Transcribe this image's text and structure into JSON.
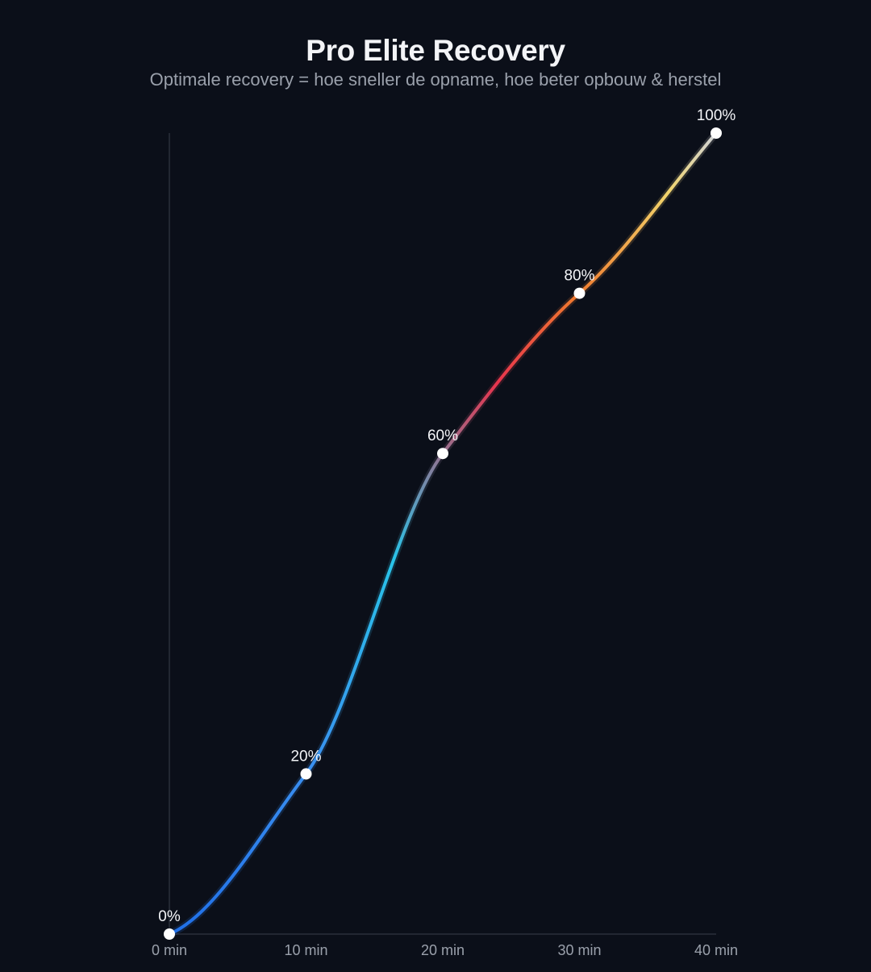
{
  "chart_data": {
    "type": "line",
    "title": "Pro Elite Recovery",
    "subtitle": "Optimale recovery = hoe sneller de opname, hoe beter opbouw & herstel",
    "xlabel": "",
    "ylabel": "",
    "x_tick_labels": [
      "0 min",
      "10 min",
      "20 min",
      "30 min",
      "40 min"
    ],
    "x_ticks": [
      0,
      10,
      20,
      30,
      40
    ],
    "xlim": [
      0,
      40
    ],
    "ylim": [
      0,
      100
    ],
    "grid": false,
    "series": [
      {
        "x": [
          0,
          10,
          20,
          30,
          40
        ],
        "values": [
          0,
          20,
          60,
          80,
          100
        ],
        "point_labels": [
          "0%",
          "20%",
          "60%",
          "80%",
          "100%"
        ]
      }
    ],
    "gradient_colors": [
      "#1f6fe8",
      "#3a8ff0",
      "#29c3e8",
      "#e8344d",
      "#f07a2e",
      "#f2d46b",
      "#cfd3da"
    ],
    "marker_color": "#ffffff"
  }
}
